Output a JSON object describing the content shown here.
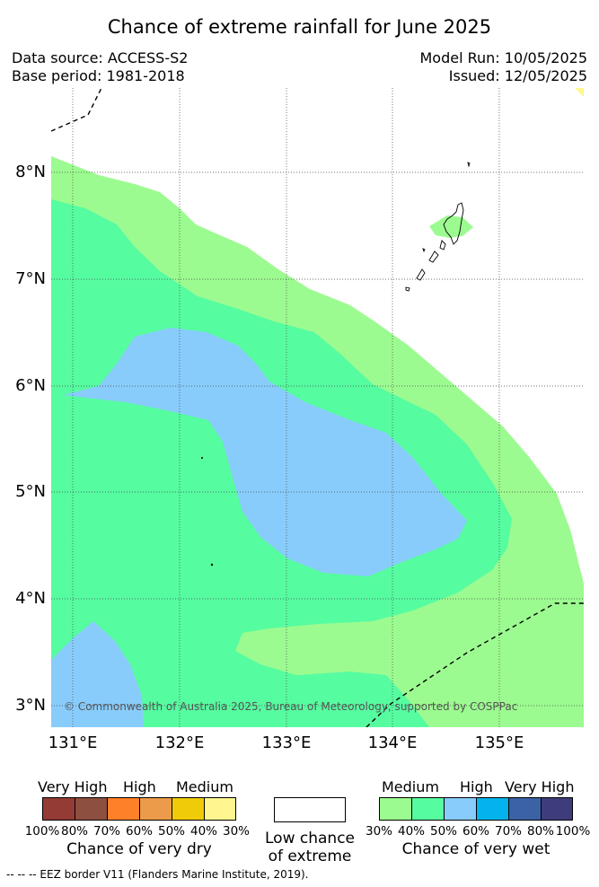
{
  "title": "Chance of extreme rainfall for June 2025",
  "data_source": "Data source: ACCESS-S2",
  "base_period": "Base period: 1981-2018",
  "model_run": "Model Run: 10/05/2025",
  "issued": "Issued: 12/05/2025",
  "latitudes": [
    "8°N",
    "7°N",
    "6°N",
    "5°N",
    "4°N",
    "3°N"
  ],
  "longitudes": [
    "131°E",
    "132°E",
    "133°E",
    "134°E",
    "135°E"
  ],
  "copyright": "© Commonwealth of Australia 2025, Bureau of Meteorology, supported by COSPPac",
  "colors": {
    "light_green": "#9cfb90",
    "mid_green": "#56fca0",
    "light_blue": "#88ccfb",
    "yellow": "#fff68f"
  },
  "legend_dry": {
    "categories": [
      "Very High",
      "High",
      "Medium"
    ],
    "colors": [
      "#943b35",
      "#8d4f3f",
      "#fe8028",
      "#ec9b4a",
      "#f0cb08",
      "#fff68f"
    ],
    "ticks": [
      "100%",
      "80%",
      "70%",
      "60%",
      "50%",
      "40%",
      "30%"
    ],
    "caption": "Chance of very dry"
  },
  "legend_low": {
    "line1": "Low chance",
    "line2": "of extreme"
  },
  "legend_wet": {
    "categories": [
      "Medium",
      "High",
      "Very High"
    ],
    "colors": [
      "#9cfb90",
      "#56fca0",
      "#88ccfb",
      "#04b3eb",
      "#3b62a5",
      "#3f3c7c"
    ],
    "ticks": [
      "30%",
      "40%",
      "50%",
      "60%",
      "70%",
      "80%",
      "100%"
    ],
    "caption": "Chance of very wet"
  },
  "footer": "--  --  -- EEZ border V11 (Flanders Marine Institute, 2019)."
}
